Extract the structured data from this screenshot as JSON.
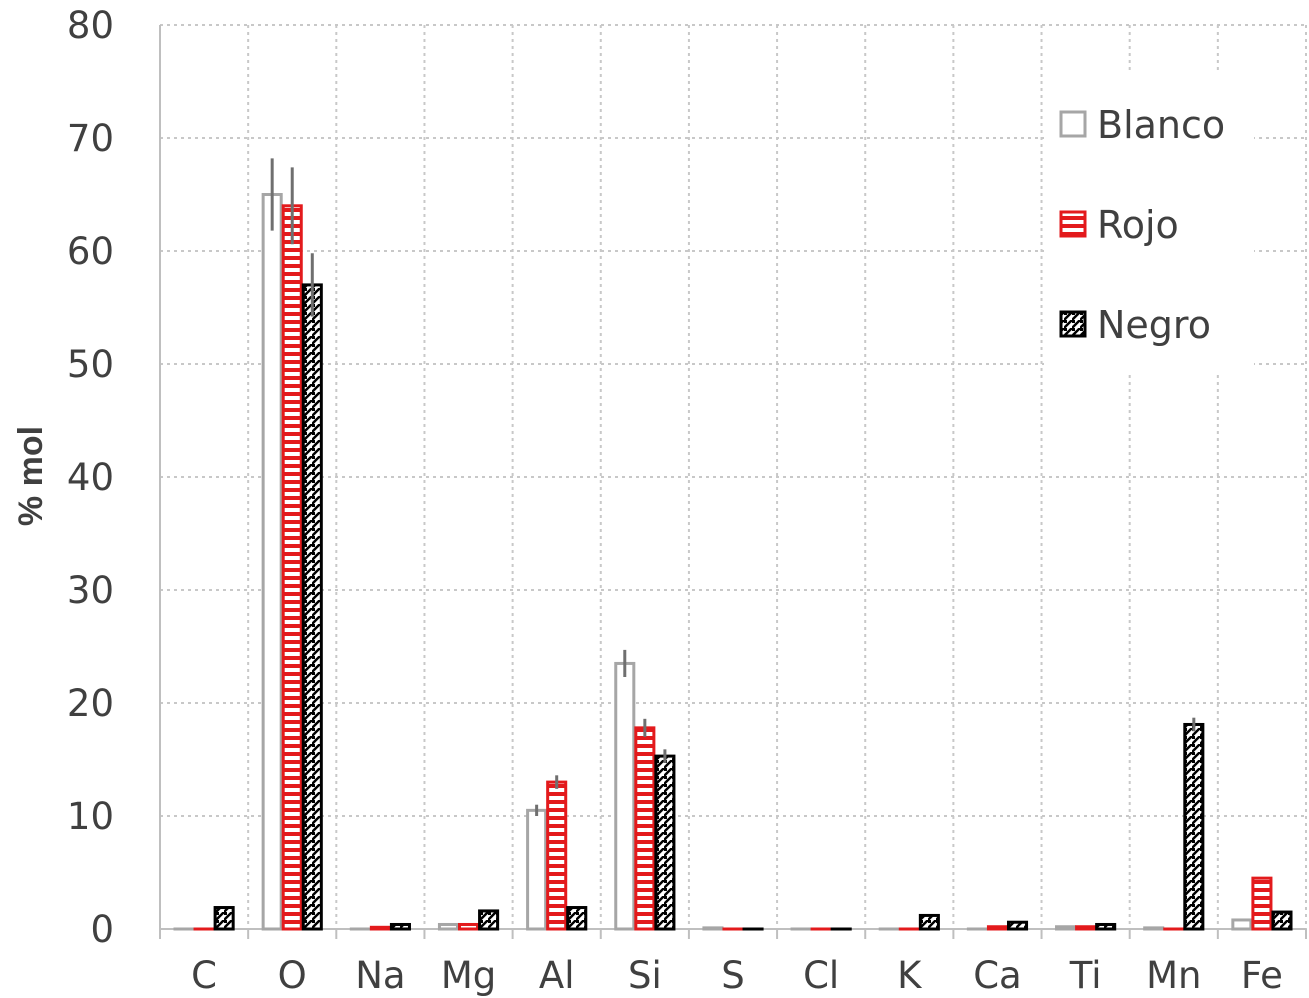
{
  "chart_data": {
    "type": "bar",
    "title": "",
    "xlabel": "",
    "ylabel": "% mol",
    "ylim": [
      0,
      80
    ],
    "yticks": [
      0,
      10,
      20,
      30,
      40,
      50,
      60,
      70,
      80
    ],
    "grid": true,
    "legend_position": "top-right",
    "categories": [
      "C",
      "O",
      "Na",
      "Mg",
      "Al",
      "Si",
      "S",
      "Cl",
      "K",
      "Ca",
      "Ti",
      "Mn",
      "Fe"
    ],
    "series": [
      {
        "name": "Blanco",
        "color": "#a6a6a6",
        "pattern": "hollow",
        "values": [
          0,
          65.0,
          0,
          0.4,
          10.5,
          23.5,
          0.1,
          0,
          0,
          0,
          0.2,
          0.1,
          0.8
        ],
        "errors": [
          0,
          3.2,
          0,
          0,
          0.5,
          1.2,
          0,
          0,
          0,
          0,
          0,
          0,
          0
        ]
      },
      {
        "name": "Rojo",
        "color": "#e31a1c",
        "pattern": "horizontal-stripes",
        "values": [
          0,
          64.0,
          0.15,
          0.4,
          13.0,
          17.8,
          0,
          0,
          0,
          0.2,
          0.2,
          0,
          4.5
        ],
        "errors": [
          0,
          3.4,
          0,
          0,
          0.6,
          0.8,
          0,
          0,
          0,
          0,
          0,
          0,
          0
        ]
      },
      {
        "name": "Negro",
        "color": "#000000",
        "pattern": "diagonal-checker",
        "values": [
          1.9,
          57.0,
          0.4,
          1.6,
          1.9,
          15.3,
          0,
          0,
          1.2,
          0.6,
          0.4,
          18.1,
          1.5
        ],
        "errors": [
          0,
          2.8,
          0,
          0,
          0,
          0.6,
          0,
          0,
          0,
          0,
          0,
          0.6,
          0
        ]
      }
    ]
  }
}
